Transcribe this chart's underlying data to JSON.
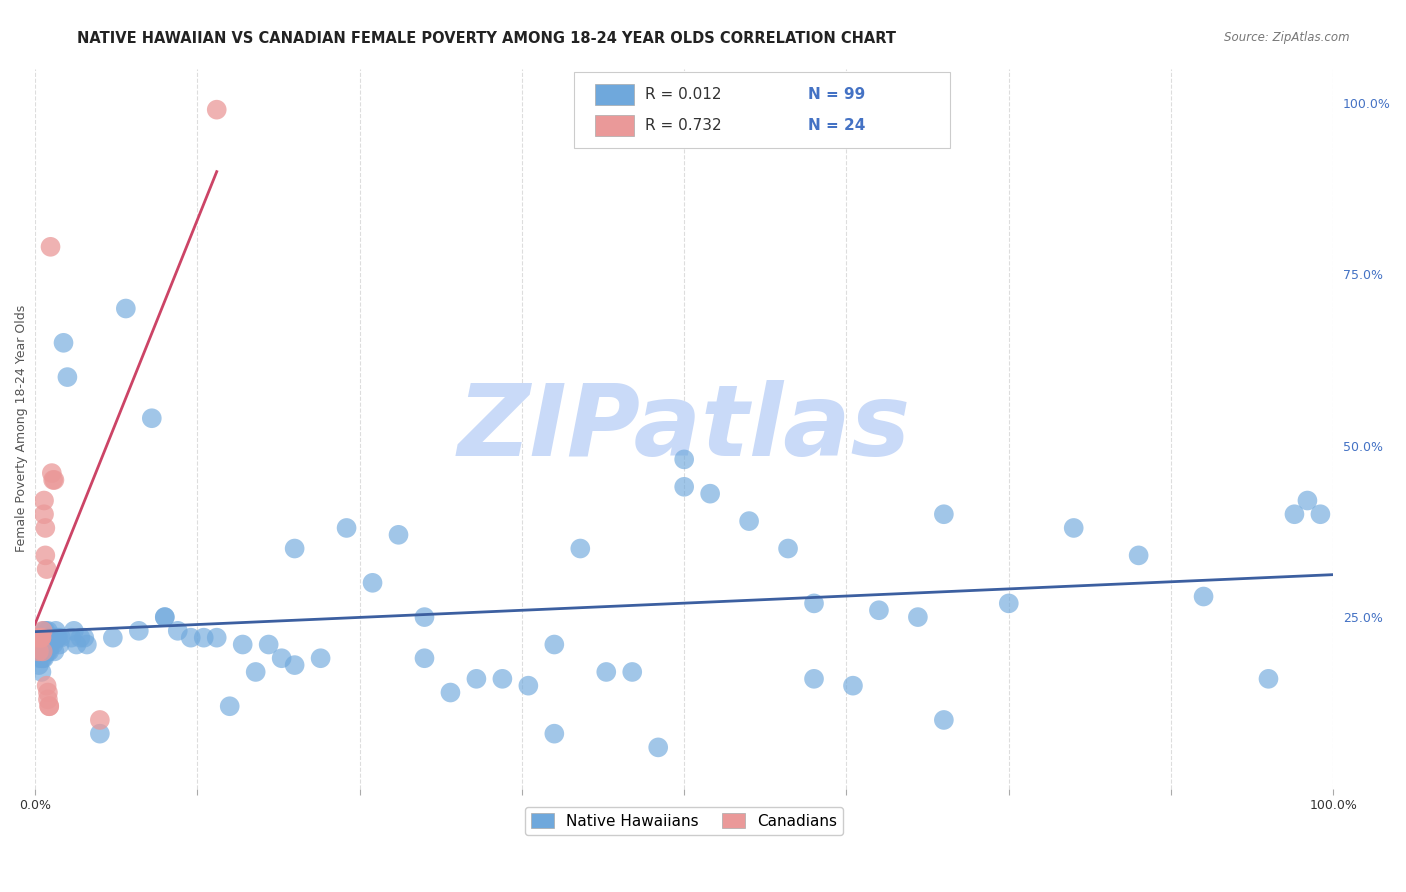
{
  "title": "NATIVE HAWAIIAN VS CANADIAN FEMALE POVERTY AMONG 18-24 YEAR OLDS CORRELATION CHART",
  "source": "Source: ZipAtlas.com",
  "ylabel": "Female Poverty Among 18-24 Year Olds",
  "nh_color": "#6fa8dc",
  "canadian_color": "#ea9999",
  "nh_line_color": "#3c5fa0",
  "canadian_line_color": "#cc4466",
  "right_tick_color": "#4472c4",
  "watermark_color": "#c9daf8",
  "background_color": "#ffffff",
  "grid_color": "#dddddd",
  "legend_r_color": "#333333",
  "legend_n_color": "#4472c4",
  "nh_x": [
    0.002,
    0.003,
    0.003,
    0.004,
    0.005,
    0.005,
    0.005,
    0.006,
    0.006,
    0.007,
    0.007,
    0.008,
    0.008,
    0.009,
    0.009,
    0.01,
    0.01,
    0.011,
    0.011,
    0.012,
    0.013,
    0.014,
    0.015,
    0.015,
    0.016,
    0.017,
    0.018,
    0.019,
    0.02,
    0.022,
    0.025,
    0.028,
    0.03,
    0.032,
    0.035,
    0.038,
    0.04,
    0.05,
    0.06,
    0.07,
    0.08,
    0.09,
    0.1,
    0.11,
    0.12,
    0.13,
    0.14,
    0.15,
    0.16,
    0.17,
    0.18,
    0.19,
    0.2,
    0.22,
    0.24,
    0.26,
    0.28,
    0.3,
    0.32,
    0.34,
    0.36,
    0.38,
    0.4,
    0.42,
    0.44,
    0.46,
    0.48,
    0.5,
    0.52,
    0.55,
    0.58,
    0.6,
    0.63,
    0.65,
    0.68,
    0.7,
    0.75,
    0.8,
    0.85,
    0.9,
    0.95,
    0.97,
    0.98,
    0.99,
    0.002,
    0.003,
    0.004,
    0.005,
    0.006,
    0.007,
    0.008,
    0.009,
    0.1,
    0.2,
    0.3,
    0.4,
    0.5,
    0.6,
    0.7
  ],
  "nh_y": [
    0.22,
    0.2,
    0.18,
    0.21,
    0.19,
    0.17,
    0.21,
    0.22,
    0.2,
    0.23,
    0.19,
    0.21,
    0.23,
    0.2,
    0.22,
    0.23,
    0.2,
    0.22,
    0.2,
    0.21,
    0.22,
    0.21,
    0.22,
    0.2,
    0.23,
    0.22,
    0.22,
    0.21,
    0.22,
    0.65,
    0.6,
    0.22,
    0.23,
    0.21,
    0.22,
    0.22,
    0.21,
    0.08,
    0.22,
    0.7,
    0.23,
    0.54,
    0.25,
    0.23,
    0.22,
    0.22,
    0.22,
    0.12,
    0.21,
    0.17,
    0.21,
    0.19,
    0.18,
    0.19,
    0.38,
    0.3,
    0.37,
    0.19,
    0.14,
    0.16,
    0.16,
    0.15,
    0.08,
    0.35,
    0.17,
    0.17,
    0.06,
    0.48,
    0.43,
    0.39,
    0.35,
    0.16,
    0.15,
    0.26,
    0.25,
    0.1,
    0.27,
    0.38,
    0.34,
    0.28,
    0.16,
    0.4,
    0.42,
    0.4,
    0.22,
    0.19,
    0.21,
    0.22,
    0.19,
    0.21,
    0.2,
    0.21,
    0.25,
    0.35,
    0.25,
    0.21,
    0.44,
    0.27,
    0.4
  ],
  "can_x": [
    0.002,
    0.003,
    0.004,
    0.004,
    0.005,
    0.005,
    0.006,
    0.006,
    0.007,
    0.007,
    0.008,
    0.008,
    0.009,
    0.009,
    0.01,
    0.01,
    0.011,
    0.011,
    0.012,
    0.013,
    0.014,
    0.015,
    0.05,
    0.14
  ],
  "can_y": [
    0.22,
    0.2,
    0.22,
    0.22,
    0.22,
    0.22,
    0.23,
    0.2,
    0.42,
    0.4,
    0.38,
    0.34,
    0.32,
    0.15,
    0.14,
    0.13,
    0.12,
    0.12,
    0.79,
    0.46,
    0.45,
    0.45,
    0.1,
    0.99
  ],
  "xlim": [
    0.0,
    1.0
  ],
  "ylim": [
    0.0,
    1.05
  ],
  "title_fontsize": 10.5,
  "source_fontsize": 8.5,
  "ylabel_fontsize": 9,
  "tick_fontsize": 9,
  "legend_fontsize": 11
}
